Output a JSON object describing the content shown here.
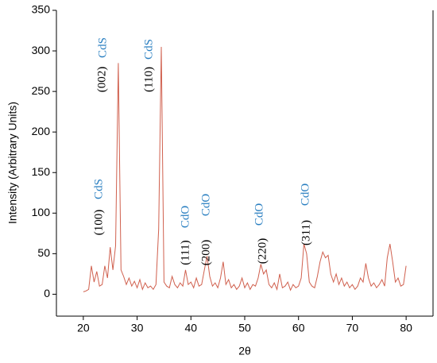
{
  "chart_data": {
    "type": "line",
    "x_label": "2θ",
    "y_label": "Intensity (Arbitrary Units)",
    "x": [
      20,
      20.5,
      21,
      21.5,
      22,
      22.5,
      23,
      23.5,
      24,
      24.5,
      25,
      25.5,
      26,
      26.5,
      27,
      27.5,
      28,
      28.5,
      29,
      29.5,
      30,
      30.5,
      31,
      31.5,
      32,
      32.5,
      33,
      33.5,
      34,
      34.5,
      35,
      35.5,
      36,
      36.5,
      37,
      37.5,
      38,
      38.5,
      39,
      39.5,
      40,
      40.5,
      41,
      41.5,
      42,
      42.5,
      43,
      43.5,
      44,
      44.5,
      45,
      45.5,
      46,
      46.5,
      47,
      47.5,
      48,
      48.5,
      49,
      49.5,
      50,
      50.5,
      51,
      51.5,
      52,
      52.5,
      53,
      53.5,
      54,
      54.5,
      55,
      55.5,
      56,
      56.5,
      57,
      57.5,
      58,
      58.5,
      59,
      59.5,
      60,
      60.5,
      61,
      61.5,
      62,
      62.5,
      63,
      63.5,
      64,
      64.5,
      65,
      65.5,
      66,
      66.5,
      67,
      67.5,
      68,
      68.5,
      69,
      69.5,
      70,
      70.5,
      71,
      71.5,
      72,
      72.5,
      73,
      73.5,
      74,
      74.5,
      75,
      75.5,
      76,
      76.5,
      77,
      77.5,
      78,
      78.5,
      79,
      79.5,
      80
    ],
    "series": [
      {
        "color": "#d0604e",
        "values": [
          3,
          4,
          6,
          35,
          15,
          28,
          10,
          12,
          35,
          20,
          58,
          30,
          60,
          285,
          30,
          22,
          12,
          20,
          10,
          16,
          8,
          18,
          6,
          14,
          8,
          10,
          6,
          12,
          80,
          305,
          15,
          10,
          8,
          22,
          12,
          8,
          14,
          10,
          30,
          12,
          15,
          8,
          20,
          10,
          12,
          30,
          47,
          22,
          10,
          14,
          8,
          20,
          40,
          12,
          18,
          8,
          12,
          6,
          10,
          20,
          8,
          14,
          6,
          12,
          10,
          20,
          37,
          25,
          30,
          12,
          8,
          14,
          6,
          25,
          8,
          10,
          15,
          5,
          12,
          8,
          10,
          20,
          62,
          50,
          15,
          10,
          8,
          22,
          40,
          52,
          45,
          48,
          25,
          15,
          25,
          12,
          20,
          10,
          15,
          8,
          12,
          6,
          10,
          20,
          15,
          38,
          20,
          10,
          14,
          8,
          12,
          18,
          10,
          45,
          62,
          40,
          15,
          20,
          10,
          12,
          35
        ]
      }
    ],
    "xlim": [
      15,
      85
    ],
    "ylim": [
      -27,
      350
    ],
    "xticks": [
      20,
      30,
      40,
      50,
      60,
      70,
      80
    ],
    "yticks": [
      0,
      50,
      100,
      150,
      200,
      250,
      300,
      350
    ],
    "annotations": [
      {
        "text": "(002)"
      },
      {
        "text": "CdS"
      },
      {
        "text": "(110)"
      },
      {
        "text": "CdS"
      },
      {
        "text": "(100)"
      },
      {
        "text": "CdS"
      },
      {
        "text": "(111)"
      },
      {
        "text": "CdO"
      },
      {
        "text": "(200)"
      },
      {
        "text": "CdO"
      },
      {
        "text": "(220)"
      },
      {
        "text": "CdO"
      },
      {
        "text": "(311)"
      },
      {
        "text": "CdO"
      }
    ]
  }
}
